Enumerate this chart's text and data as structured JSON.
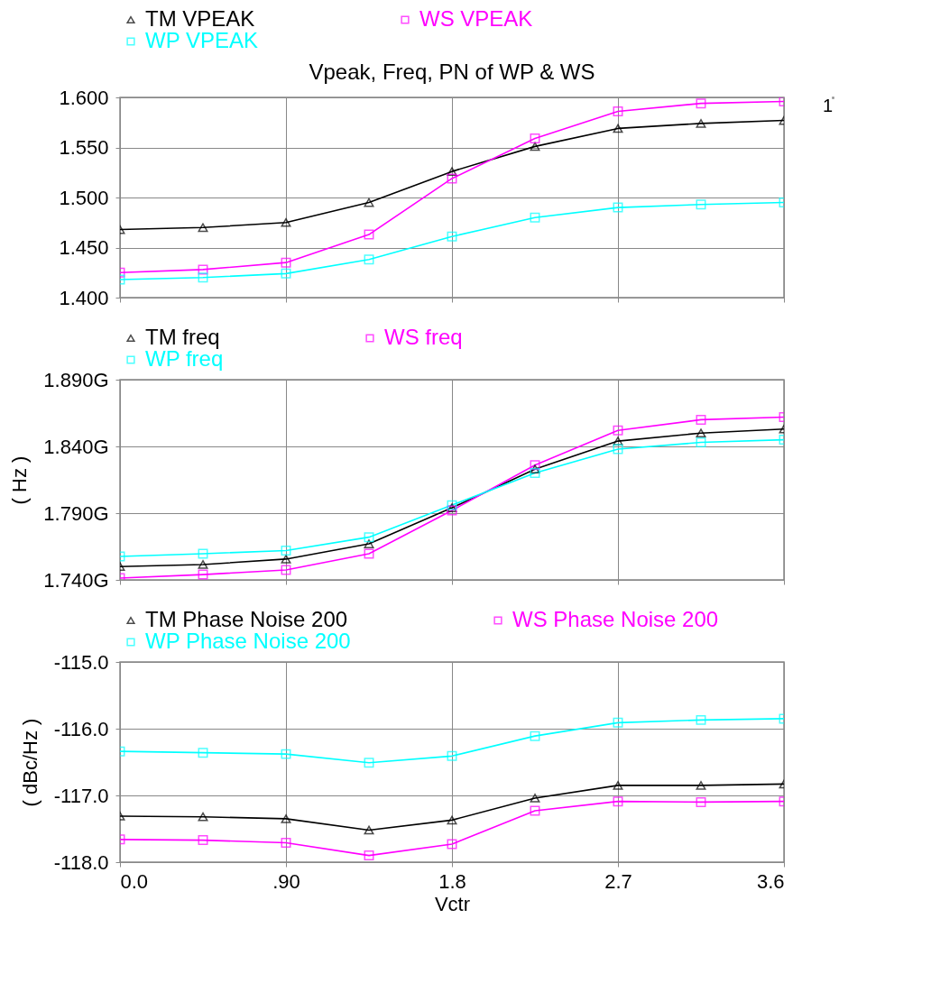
{
  "chart_data": [
    {
      "type": "line",
      "title": "Vpeak, Freq, PN of WP & WS",
      "annotations": [
        "1"
      ],
      "x": [
        0,
        0.45,
        0.9,
        1.35,
        1.8,
        2.25,
        2.7,
        3.15,
        3.6
      ],
      "series": [
        {
          "name": "TM VPEAK",
          "color": "#000000",
          "marker": "triangle",
          "values": [
            1.468,
            1.47,
            1.475,
            1.495,
            1.526,
            1.551,
            1.569,
            1.574,
            1.577
          ]
        },
        {
          "name": "WS VPEAK",
          "color": "#ff00ff",
          "marker": "square",
          "values": [
            1.425,
            1.428,
            1.435,
            1.463,
            1.519,
            1.559,
            1.586,
            1.594,
            1.596
          ]
        },
        {
          "name": "WP VPEAK",
          "color": "#00ffff",
          "marker": "square",
          "values": [
            1.418,
            1.42,
            1.424,
            1.438,
            1.461,
            1.48,
            1.49,
            1.493,
            1.495
          ]
        }
      ],
      "xlim": [
        0,
        3.6
      ],
      "xticks": [
        0,
        0.9,
        1.8,
        2.7,
        3.6
      ],
      "ylim": [
        1.4,
        1.6
      ],
      "yticks": [
        {
          "value": 1.4,
          "label": "1.400"
        },
        {
          "value": 1.45,
          "label": "1.450"
        },
        {
          "value": 1.5,
          "label": "1.500"
        },
        {
          "value": 1.55,
          "label": "1.550"
        },
        {
          "value": 1.6,
          "label": "1.600"
        }
      ],
      "grid": true,
      "legend": "top",
      "tick_labels": "y",
      "line_style": "solid"
    },
    {
      "type": "line",
      "ylabel": "( Hz )",
      "x": [
        0,
        0.45,
        0.9,
        1.35,
        1.8,
        2.25,
        2.7,
        3.15,
        3.6
      ],
      "series": [
        {
          "name": "TM freq",
          "color": "#000000",
          "marker": "triangle",
          "values": [
            1.75,
            1.7515,
            1.7556,
            1.767,
            1.794,
            1.823,
            1.844,
            1.85,
            1.853
          ]
        },
        {
          "name": "WS freq",
          "color": "#ff00ff",
          "marker": "square",
          "values": [
            1.7414,
            1.744,
            1.7474,
            1.7596,
            1.792,
            1.826,
            1.852,
            1.86,
            1.862
          ]
        },
        {
          "name": "WP freq",
          "color": "#00ffff",
          "marker": "square",
          "values": [
            1.7576,
            1.7596,
            1.762,
            1.772,
            1.796,
            1.82,
            1.838,
            1.843,
            1.845
          ]
        }
      ],
      "xlim": [
        0,
        3.6
      ],
      "xticks": [
        0,
        0.9,
        1.8,
        2.7,
        3.6
      ],
      "ylim": [
        1.74,
        1.89
      ],
      "yticks": [
        {
          "value": 1.74,
          "label": "1.740G"
        },
        {
          "value": 1.79,
          "label": "1.790G"
        },
        {
          "value": 1.84,
          "label": "1.840G"
        },
        {
          "value": 1.89,
          "label": "1.890G"
        }
      ],
      "grid": true,
      "legend": "top",
      "tick_labels": "y",
      "line_style": "solid"
    },
    {
      "type": "line",
      "ylabel": "( dBc/Hz )",
      "xlabel": "Vctr",
      "x": [
        0,
        0.45,
        0.9,
        1.35,
        1.8,
        2.25,
        2.7,
        3.15,
        3.6
      ],
      "series": [
        {
          "name": "TM Phase Noise 200",
          "color": "#000000",
          "marker": "triangle",
          "values": [
            -117.31,
            -117.32,
            -117.35,
            -117.52,
            -117.37,
            -117.04,
            -116.85,
            -116.85,
            -116.83
          ]
        },
        {
          "name": "WS Phase Noise 200",
          "color": "#ff00ff",
          "marker": "square",
          "values": [
            -117.66,
            -117.67,
            -117.71,
            -117.9,
            -117.73,
            -117.23,
            -117.09,
            -117.1,
            -117.09
          ]
        },
        {
          "name": "WP Phase Noise 200",
          "color": "#00ffff",
          "marker": "square",
          "values": [
            -116.34,
            -116.36,
            -116.38,
            -116.51,
            -116.41,
            -116.11,
            -115.91,
            -115.87,
            -115.85
          ]
        }
      ],
      "xlim": [
        0,
        3.6
      ],
      "xticks": [
        {
          "value": 0,
          "label": "0.0"
        },
        {
          "value": 0.9,
          "label": ".90"
        },
        1.8,
        2.7,
        3.6
      ],
      "ylim": [
        -118,
        -115
      ],
      "yticks": [
        {
          "value": -118,
          "label": "-118.0"
        },
        {
          "value": -117,
          "label": "-117.0"
        },
        {
          "value": -116,
          "label": "-116.0"
        },
        {
          "value": -115,
          "label": "-115.0"
        }
      ],
      "grid": true,
      "legend": "top",
      "line_style": "solid"
    }
  ]
}
